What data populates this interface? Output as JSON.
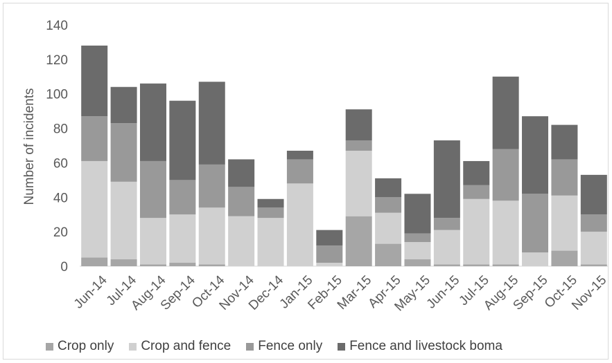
{
  "chart_data": {
    "type": "bar",
    "stacked": true,
    "title": "",
    "xlabel": "",
    "ylabel": "Number of incidents",
    "ylim": [
      0,
      140
    ],
    "yticks": [
      0,
      20,
      40,
      60,
      80,
      100,
      120,
      140
    ],
    "grid": false,
    "legend_position": "bottom",
    "categories": [
      "Jun-14",
      "Jul-14",
      "Aug-14",
      "Sep-14",
      "Oct-14",
      "Nov-14",
      "Dec-14",
      "Jan-15",
      "Feb-15",
      "Mar-15",
      "Apr-15",
      "May-15",
      "Jun-15",
      "Jul-15",
      "Aug-15",
      "Sep-15",
      "Oct-15",
      "Nov-15"
    ],
    "series": [
      {
        "name": "Crop only",
        "color": "#a6a6a6",
        "values": [
          5,
          4,
          1,
          2,
          1,
          0,
          0,
          0,
          0,
          29,
          13,
          4,
          1,
          1,
          1,
          0,
          9,
          1
        ]
      },
      {
        "name": "Crop and fence",
        "color": "#d0d0d0",
        "values": [
          56,
          45,
          27,
          28,
          33,
          29,
          28,
          48,
          2,
          38,
          18,
          10,
          20,
          38,
          37,
          8,
          32,
          19
        ]
      },
      {
        "name": "Fence only",
        "color": "#999999",
        "values": [
          26,
          34,
          33,
          20,
          25,
          17,
          6,
          14,
          10,
          6,
          9,
          5,
          7,
          8,
          30,
          34,
          21,
          10
        ]
      },
      {
        "name": "Fence and livestock boma",
        "color": "#6b6b6b",
        "values": [
          41,
          21,
          45,
          46,
          48,
          16,
          5,
          5,
          9,
          18,
          11,
          23,
          45,
          14,
          42,
          45,
          20,
          23
        ]
      }
    ]
  }
}
